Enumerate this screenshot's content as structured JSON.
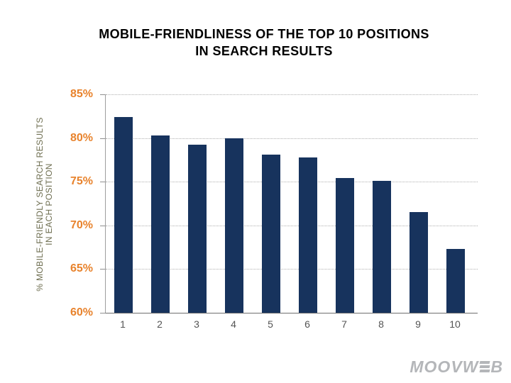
{
  "header": {
    "title_line1": "MOBILE-FRIENDLINESS OF THE TOP 10 POSITIONS",
    "title_line2": "IN SEARCH RESULTS"
  },
  "chart_data": {
    "type": "bar",
    "title": "MOBILE-FRIENDLINESS OF THE TOP 10 POSITIONS IN SEARCH RESULTS",
    "categories": [
      "1",
      "2",
      "3",
      "4",
      "5",
      "6",
      "7",
      "8",
      "9",
      "10"
    ],
    "values": [
      82.4,
      80.3,
      79.2,
      80.0,
      78.1,
      77.8,
      75.4,
      75.1,
      71.5,
      67.3
    ],
    "xlabel": "",
    "ylabel": "% MOBILE-FRIENDLY SEARCH RESULTS IN EACH POSITION",
    "ylabel_lines": [
      "% MOBILE-FRIENDLY SEARCH RESULTS",
      "IN EACH POSITION"
    ],
    "ylim": [
      60,
      85
    ],
    "ytick_step": 5,
    "ytick_labels": [
      "85%",
      "80%",
      "75%",
      "70%",
      "65%",
      "60%"
    ],
    "grid": "horizontal-dotted",
    "legend": "none",
    "colors": {
      "bar": "#17335D",
      "ytick_label": "#E8832D",
      "ylabel": "#6E6E50",
      "xtick_label": "#545454",
      "title": "#000000",
      "gridline": "#B0B0B0"
    }
  },
  "footer": {
    "logo_name": "MOOVWEB",
    "logo_before": "MOOVW",
    "logo_after": "B",
    "logo_color": "#B4B6B9"
  }
}
